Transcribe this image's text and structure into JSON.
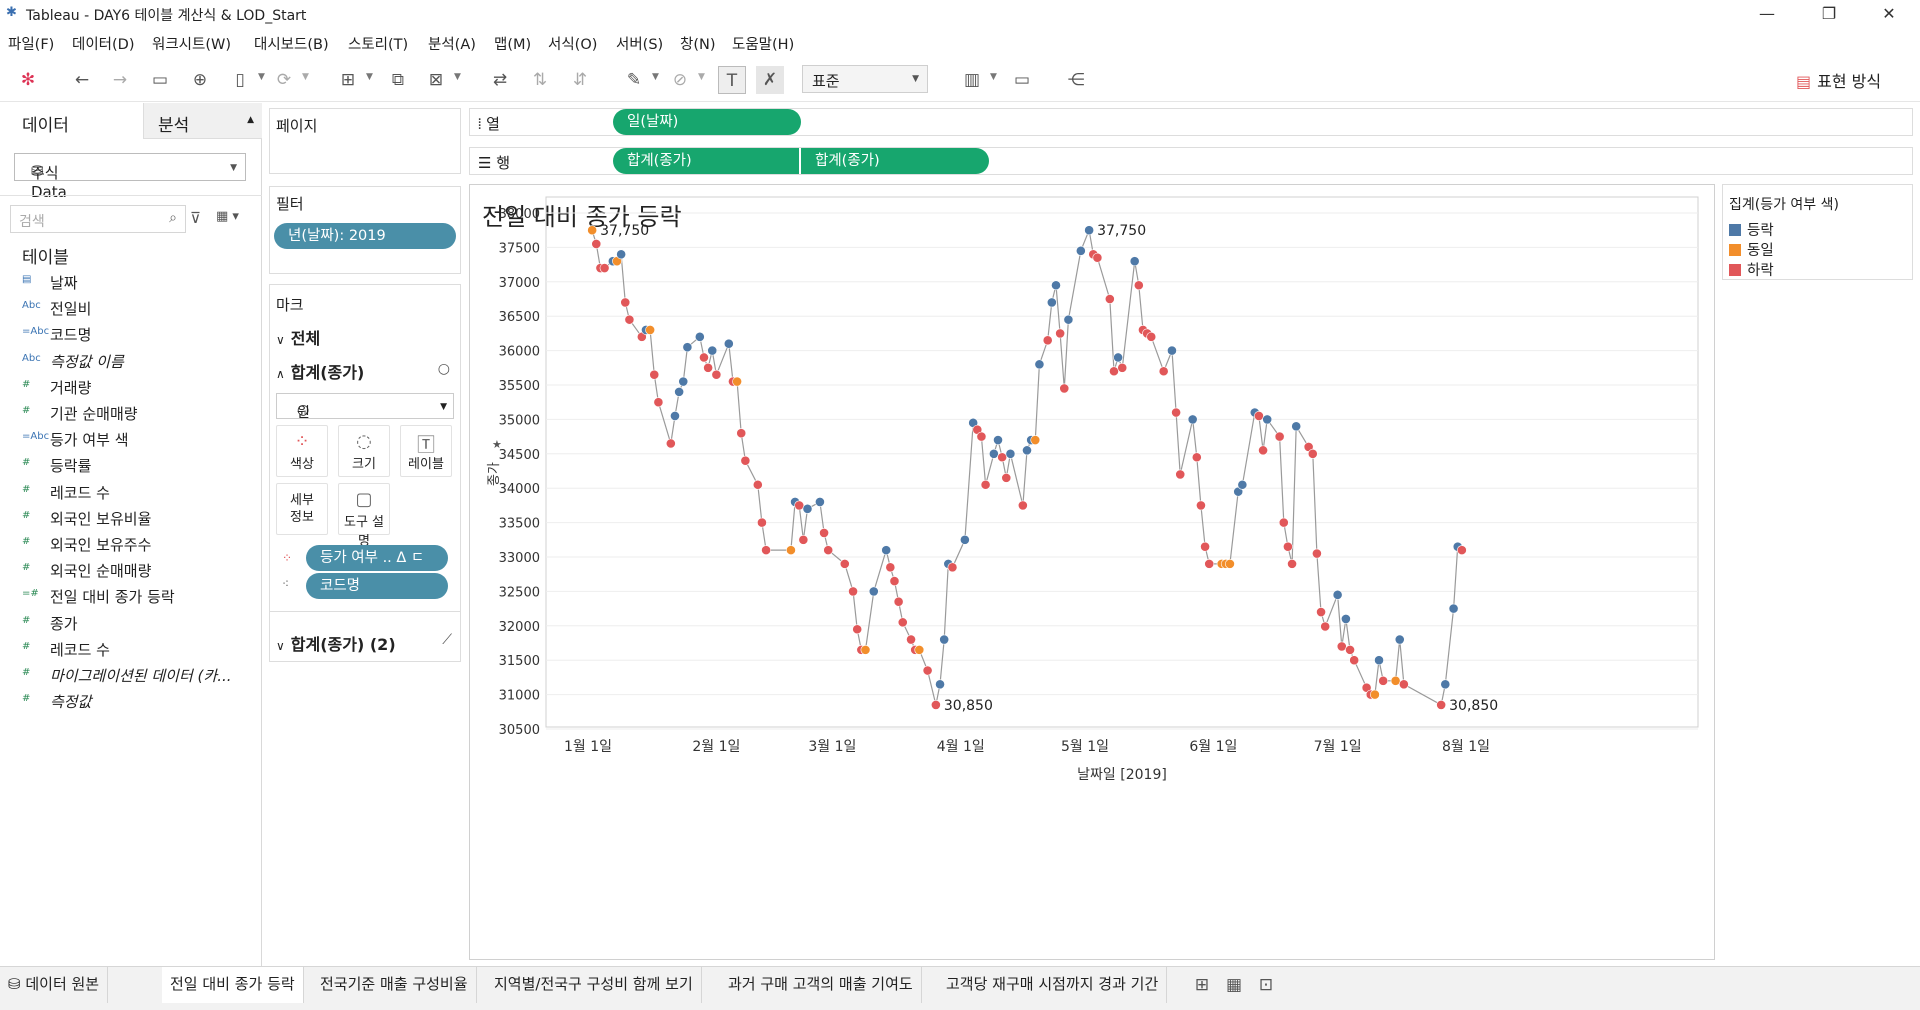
{
  "window": {
    "title": "Tableau - DAY6 테이블 계산식 & LOD_Start",
    "logo": "tableau-logo-icon"
  },
  "menu": [
    "파일(F)",
    "데이터(D)",
    "워크시트(W)",
    "대시보드(B)",
    "스토리(T)",
    "분석(A)",
    "맵(M)",
    "서식(O)",
    "서버(S)",
    "창(N)",
    "도움말(H)"
  ],
  "toolbar": {
    "fit": "표준",
    "show_me": "표현 방식"
  },
  "left": {
    "tab_data": "데이터",
    "tab_analysis": "분석",
    "datasource": "주식Data",
    "search_placeholder": "검색",
    "tables_heading": "테이블",
    "fields": [
      {
        "type": "date",
        "label": "날짜"
      },
      {
        "type": "Abc",
        "label": "전일비"
      },
      {
        "type": "=Abc",
        "label": "코드명"
      },
      {
        "type": "Abc",
        "label": "측정값 이름",
        "italic": true
      },
      {
        "type": "#",
        "label": "거래량"
      },
      {
        "type": "#",
        "label": "기관 순매매량"
      },
      {
        "type": "=Abc",
        "label": "등가 여부 색"
      },
      {
        "type": "#",
        "label": "등락률"
      },
      {
        "type": "#",
        "label": "레코드 수"
      },
      {
        "type": "#",
        "label": "외국인 보유비율"
      },
      {
        "type": "#",
        "label": "외국인 보유주수"
      },
      {
        "type": "#",
        "label": "외국인 순매매량"
      },
      {
        "type": "=#",
        "label": "전일 대비 종가 등락"
      },
      {
        "type": "#",
        "label": "종가"
      },
      {
        "type": "#",
        "label": "레코드 수"
      },
      {
        "type": "#",
        "label": "마이그레이션된 데이터 (카...",
        "italic": true
      },
      {
        "type": "#",
        "label": "측정값",
        "italic": true
      }
    ]
  },
  "pages": {
    "label": "페이지"
  },
  "filters": {
    "label": "필터",
    "pill": "년(날짜): 2019"
  },
  "marks": {
    "label": "마크",
    "all": "전체",
    "measure": "합계(종가)",
    "mark_type": "원",
    "buttons": {
      "color": "색상",
      "size": "크기",
      "label": "레이블",
      "detail": "세부\n정보",
      "tooltip": "도구 설명"
    },
    "pill_color": "등가 여부 ..",
    "pill_color_suffix": "Δ ㄷ",
    "pill_detail": "코드명",
    "second": "합계(종가) (2)"
  },
  "shelves": {
    "columns_label": "열",
    "rows_label": "행",
    "column_pill": "일(날짜)",
    "row_pills": [
      "합계(종가)",
      "합계(종가)"
    ]
  },
  "legend": {
    "title": "집계(등가 여부 색)",
    "items": [
      {
        "label": "등락",
        "color": "#4e79a7"
      },
      {
        "label": "동일",
        "color": "#f28e2b"
      },
      {
        "label": "하락",
        "color": "#e15759"
      }
    ]
  },
  "sheets": [
    "데이터 원본",
    "전일 대비 종가 등락",
    "전국기준 매출 구성비율",
    "지역별/전국구 구성비 함께 보기",
    "과거 구매 고객의 매출 기여도",
    "고객당 재구매 시점까지 경과 기간"
  ],
  "active_sheet": 1,
  "chart_data": {
    "type": "scatter",
    "title": "전일 대비 종가 등락",
    "xlabel": "날짜일 [2019]",
    "ylabel": "종가",
    "ylim": [
      30500,
      38000
    ],
    "yticks": [
      30500,
      31000,
      31500,
      32000,
      32500,
      33000,
      33500,
      34000,
      34500,
      35000,
      35500,
      36000,
      36500,
      37000,
      37500,
      38000
    ],
    "xtick_labels": [
      "1월 1일",
      "2월 1일",
      "3월 1일",
      "4월 1일",
      "5월 1일",
      "6월 1일",
      "7월 1일",
      "8월 1일"
    ],
    "xtick_dates": [
      "2019-01-01",
      "2019-02-01",
      "2019-03-01",
      "2019-04-01",
      "2019-05-01",
      "2019-06-01",
      "2019-07-01",
      "2019-08-01"
    ],
    "grid": true,
    "line_color": "#9a9a9a",
    "color_map": {
      "up": "#4e79a7",
      "same": "#f28e2b",
      "down": "#e15759"
    },
    "annotations": [
      {
        "date": "2019-01-02",
        "value": 37750,
        "text": "37,750"
      },
      {
        "date": "2019-05-02",
        "value": 37750,
        "text": "37,750"
      },
      {
        "date": "2019-03-26",
        "value": 30850,
        "text": "30,850"
      },
      {
        "date": "2019-07-26",
        "value": 30850,
        "text": "30,850"
      }
    ],
    "points": [
      [
        "2019-01-02",
        37750,
        "same"
      ],
      [
        "2019-01-03",
        37550,
        "down"
      ],
      [
        "2019-01-04",
        37200,
        "down"
      ],
      [
        "2019-01-05",
        37200,
        "down"
      ],
      [
        "2019-01-07",
        37300,
        "up"
      ],
      [
        "2019-01-08",
        37300,
        "same"
      ],
      [
        "2019-01-09",
        37400,
        "up"
      ],
      [
        "2019-01-10",
        36700,
        "down"
      ],
      [
        "2019-01-11",
        36450,
        "down"
      ],
      [
        "2019-01-14",
        36200,
        "down"
      ],
      [
        "2019-01-15",
        36300,
        "up"
      ],
      [
        "2019-01-16",
        36300,
        "same"
      ],
      [
        "2019-01-17",
        35650,
        "down"
      ],
      [
        "2019-01-18",
        35250,
        "down"
      ],
      [
        "2019-01-21",
        34650,
        "down"
      ],
      [
        "2019-01-22",
        35050,
        "up"
      ],
      [
        "2019-01-23",
        35400,
        "up"
      ],
      [
        "2019-01-24",
        35550,
        "up"
      ],
      [
        "2019-01-25",
        36050,
        "up"
      ],
      [
        "2019-01-28",
        36200,
        "up"
      ],
      [
        "2019-01-29",
        35900,
        "down"
      ],
      [
        "2019-01-30",
        35750,
        "down"
      ],
      [
        "2019-01-31",
        36000,
        "up"
      ],
      [
        "2019-02-01",
        35650,
        "down"
      ],
      [
        "2019-02-04",
        36100,
        "up"
      ],
      [
        "2019-02-05",
        35550,
        "down"
      ],
      [
        "2019-02-06",
        35550,
        "same"
      ],
      [
        "2019-02-07",
        34800,
        "down"
      ],
      [
        "2019-02-08",
        34400,
        "down"
      ],
      [
        "2019-02-11",
        34050,
        "down"
      ],
      [
        "2019-02-12",
        33500,
        "down"
      ],
      [
        "2019-02-13",
        33100,
        "down"
      ],
      [
        "2019-02-19",
        33100,
        "same"
      ],
      [
        "2019-02-20",
        33800,
        "up"
      ],
      [
        "2019-02-21",
        33750,
        "down"
      ],
      [
        "2019-02-22",
        33250,
        "down"
      ],
      [
        "2019-02-23",
        33700,
        "up"
      ],
      [
        "2019-02-26",
        33800,
        "up"
      ],
      [
        "2019-02-27",
        33350,
        "down"
      ],
      [
        "2019-02-28",
        33100,
        "down"
      ],
      [
        "2019-03-04",
        32900,
        "down"
      ],
      [
        "2019-03-06",
        32500,
        "down"
      ],
      [
        "2019-03-07",
        31950,
        "down"
      ],
      [
        "2019-03-08",
        31650,
        "down"
      ],
      [
        "2019-03-09",
        31650,
        "same"
      ],
      [
        "2019-03-11",
        32500,
        "up"
      ],
      [
        "2019-03-14",
        33100,
        "up"
      ],
      [
        "2019-03-15",
        32850,
        "down"
      ],
      [
        "2019-03-16",
        32650,
        "down"
      ],
      [
        "2019-03-17",
        32350,
        "down"
      ],
      [
        "2019-03-18",
        32050,
        "down"
      ],
      [
        "2019-03-20",
        31800,
        "down"
      ],
      [
        "2019-03-21",
        31650,
        "down"
      ],
      [
        "2019-03-22",
        31650,
        "same"
      ],
      [
        "2019-03-24",
        31350,
        "down"
      ],
      [
        "2019-03-26",
        30850,
        "down"
      ],
      [
        "2019-03-27",
        31150,
        "up"
      ],
      [
        "2019-03-28",
        31800,
        "up"
      ],
      [
        "2019-03-29",
        32900,
        "up"
      ],
      [
        "2019-03-30",
        32850,
        "down"
      ],
      [
        "2019-04-02",
        33250,
        "up"
      ],
      [
        "2019-04-04",
        34950,
        "up"
      ],
      [
        "2019-04-05",
        34850,
        "down"
      ],
      [
        "2019-04-06",
        34750,
        "down"
      ],
      [
        "2019-04-07",
        34050,
        "down"
      ],
      [
        "2019-04-09",
        34500,
        "up"
      ],
      [
        "2019-04-10",
        34700,
        "up"
      ],
      [
        "2019-04-11",
        34450,
        "down"
      ],
      [
        "2019-04-12",
        34150,
        "down"
      ],
      [
        "2019-04-13",
        34500,
        "up"
      ],
      [
        "2019-04-16",
        33750,
        "down"
      ],
      [
        "2019-04-17",
        34550,
        "up"
      ],
      [
        "2019-04-18",
        34700,
        "up"
      ],
      [
        "2019-04-19",
        34700,
        "same"
      ],
      [
        "2019-04-20",
        35800,
        "up"
      ],
      [
        "2019-04-22",
        36150,
        "down"
      ],
      [
        "2019-04-23",
        36700,
        "up"
      ],
      [
        "2019-04-24",
        36950,
        "up"
      ],
      [
        "2019-04-25",
        36250,
        "down"
      ],
      [
        "2019-04-26",
        35450,
        "down"
      ],
      [
        "2019-04-27",
        36450,
        "up"
      ],
      [
        "2019-04-30",
        37450,
        "up"
      ],
      [
        "2019-05-02",
        37750,
        "up"
      ],
      [
        "2019-05-03",
        37400,
        "down"
      ],
      [
        "2019-05-04",
        37350,
        "down"
      ],
      [
        "2019-05-07",
        36750,
        "down"
      ],
      [
        "2019-05-08",
        35700,
        "down"
      ],
      [
        "2019-05-09",
        35900,
        "up"
      ],
      [
        "2019-05-10",
        35750,
        "down"
      ],
      [
        "2019-05-13",
        37300,
        "up"
      ],
      [
        "2019-05-14",
        36950,
        "down"
      ],
      [
        "2019-05-15",
        36300,
        "down"
      ],
      [
        "2019-05-16",
        36250,
        "down"
      ],
      [
        "2019-05-17",
        36200,
        "down"
      ],
      [
        "2019-05-20",
        35700,
        "down"
      ],
      [
        "2019-05-22",
        36000,
        "up"
      ],
      [
        "2019-05-23",
        35100,
        "down"
      ],
      [
        "2019-05-24",
        34200,
        "down"
      ],
      [
        "2019-05-27",
        35000,
        "up"
      ],
      [
        "2019-05-28",
        34450,
        "down"
      ],
      [
        "2019-05-29",
        33750,
        "down"
      ],
      [
        "2019-05-30",
        33150,
        "down"
      ],
      [
        "2019-05-31",
        32900,
        "down"
      ],
      [
        "2019-06-03",
        32900,
        "same"
      ],
      [
        "2019-06-04",
        32900,
        "same"
      ],
      [
        "2019-06-05",
        32900,
        "same"
      ],
      [
        "2019-06-07",
        33950,
        "up"
      ],
      [
        "2019-06-08",
        34050,
        "up"
      ],
      [
        "2019-06-11",
        35100,
        "up"
      ],
      [
        "2019-06-12",
        35050,
        "down"
      ],
      [
        "2019-06-13",
        34550,
        "down"
      ],
      [
        "2019-06-14",
        35000,
        "up"
      ],
      [
        "2019-06-17",
        34750,
        "down"
      ],
      [
        "2019-06-18",
        33500,
        "down"
      ],
      [
        "2019-06-19",
        33150,
        "down"
      ],
      [
        "2019-06-20",
        32900,
        "down"
      ],
      [
        "2019-06-21",
        34900,
        "up"
      ],
      [
        "2019-06-24",
        34600,
        "down"
      ],
      [
        "2019-06-25",
        34500,
        "down"
      ],
      [
        "2019-06-26",
        33050,
        "down"
      ],
      [
        "2019-06-27",
        32200,
        "down"
      ],
      [
        "2019-06-28",
        31990,
        "down"
      ],
      [
        "2019-07-01",
        32450,
        "up"
      ],
      [
        "2019-07-02",
        31700,
        "down"
      ],
      [
        "2019-07-03",
        32100,
        "up"
      ],
      [
        "2019-07-04",
        31650,
        "down"
      ],
      [
        "2019-07-05",
        31500,
        "down"
      ],
      [
        "2019-07-08",
        31100,
        "down"
      ],
      [
        "2019-07-09",
        31000,
        "down"
      ],
      [
        "2019-07-10",
        31000,
        "same"
      ],
      [
        "2019-07-11",
        31500,
        "up"
      ],
      [
        "2019-07-12",
        31200,
        "down"
      ],
      [
        "2019-07-15",
        31200,
        "same"
      ],
      [
        "2019-07-16",
        31800,
        "up"
      ],
      [
        "2019-07-17",
        31150,
        "down"
      ],
      [
        "2019-07-26",
        30850,
        "down"
      ],
      [
        "2019-07-27",
        31150,
        "up"
      ],
      [
        "2019-07-29",
        32250,
        "up"
      ],
      [
        "2019-07-30",
        33150,
        "up"
      ],
      [
        "2019-07-31",
        33100,
        "down"
      ]
    ]
  }
}
